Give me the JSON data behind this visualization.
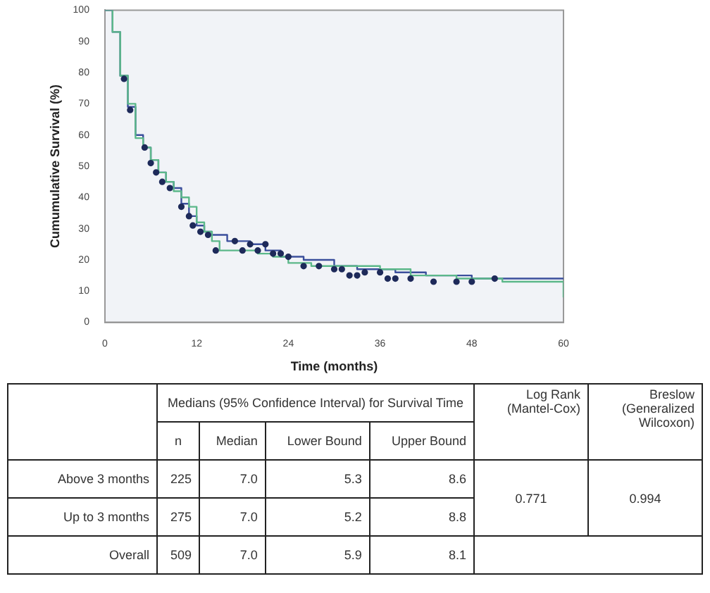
{
  "chart_data": {
    "type": "step",
    "xlabel": "Time (months)",
    "ylabel": "Cumumulative Survival (%)",
    "xlim": [
      0,
      60
    ],
    "xticks": [
      0,
      12,
      24,
      36,
      48,
      60
    ],
    "ylim": [
      0,
      100
    ],
    "yticks": [
      0,
      10,
      20,
      30,
      40,
      50,
      60,
      70,
      80,
      90,
      100
    ],
    "grid": false,
    "legend": false,
    "series": [
      {
        "color": "#3b4f9c",
        "x": [
          0,
          1,
          2,
          3,
          4,
          5,
          6,
          7,
          8,
          9,
          10,
          11,
          12,
          13,
          14,
          16,
          19,
          21,
          23,
          26,
          30,
          33,
          38,
          42,
          48,
          60
        ],
        "values": [
          100,
          93,
          79,
          69,
          60,
          56,
          52,
          48,
          45,
          43,
          38,
          34,
          31,
          29,
          28,
          26,
          25,
          23,
          21,
          20,
          18,
          17,
          16,
          15,
          14,
          14
        ]
      },
      {
        "color": "#5cb88a",
        "x": [
          0,
          1,
          2,
          3,
          4,
          5,
          6,
          7,
          8,
          9,
          10,
          11,
          12,
          13,
          14,
          15,
          20,
          22,
          24,
          27,
          30,
          36,
          40,
          46,
          52,
          60
        ],
        "values": [
          100,
          93,
          79,
          70,
          59,
          56,
          52,
          48,
          45,
          42,
          40,
          37,
          32,
          29,
          26,
          23,
          22,
          21,
          19,
          18,
          18,
          17,
          15,
          14,
          13,
          8
        ]
      },
      {
        "type": "scatter",
        "color": "#1e2a5a",
        "x": [
          2.5,
          3.3,
          5.2,
          6,
          6.7,
          7.5,
          8.5,
          10,
          11,
          11.5,
          12.5,
          13.5,
          14.5,
          17,
          18,
          19,
          20,
          21,
          22,
          23,
          24,
          26,
          28,
          30,
          31,
          32,
          33,
          34,
          36,
          37,
          38,
          40,
          43,
          46,
          48,
          51
        ],
        "values": [
          78,
          68,
          56,
          51,
          48,
          45,
          43,
          37,
          34,
          31,
          29,
          28,
          23,
          26,
          23,
          25,
          23,
          25,
          22,
          22,
          21,
          18,
          18,
          17,
          17,
          15,
          15,
          16,
          16,
          14,
          14,
          14,
          13,
          13,
          13,
          14
        ]
      }
    ],
    "annotations": [
      "Medians (95% Confidence Interval) for Survival Time",
      "n",
      "Median",
      "Lower Bound",
      "Upper Bound",
      "Log Rank (Mantel-Cox)",
      "Breslow (Generalized Wilcoxon)",
      "Above 3 months",
      "225",
      "7.0",
      "5.3",
      "8.6",
      "Up to 3 months",
      "275",
      "7.0",
      "5.2",
      "8.8",
      "0.771",
      "0.994",
      "Overall",
      "509",
      "7.0",
      "5.9",
      "8.1"
    ]
  }
}
